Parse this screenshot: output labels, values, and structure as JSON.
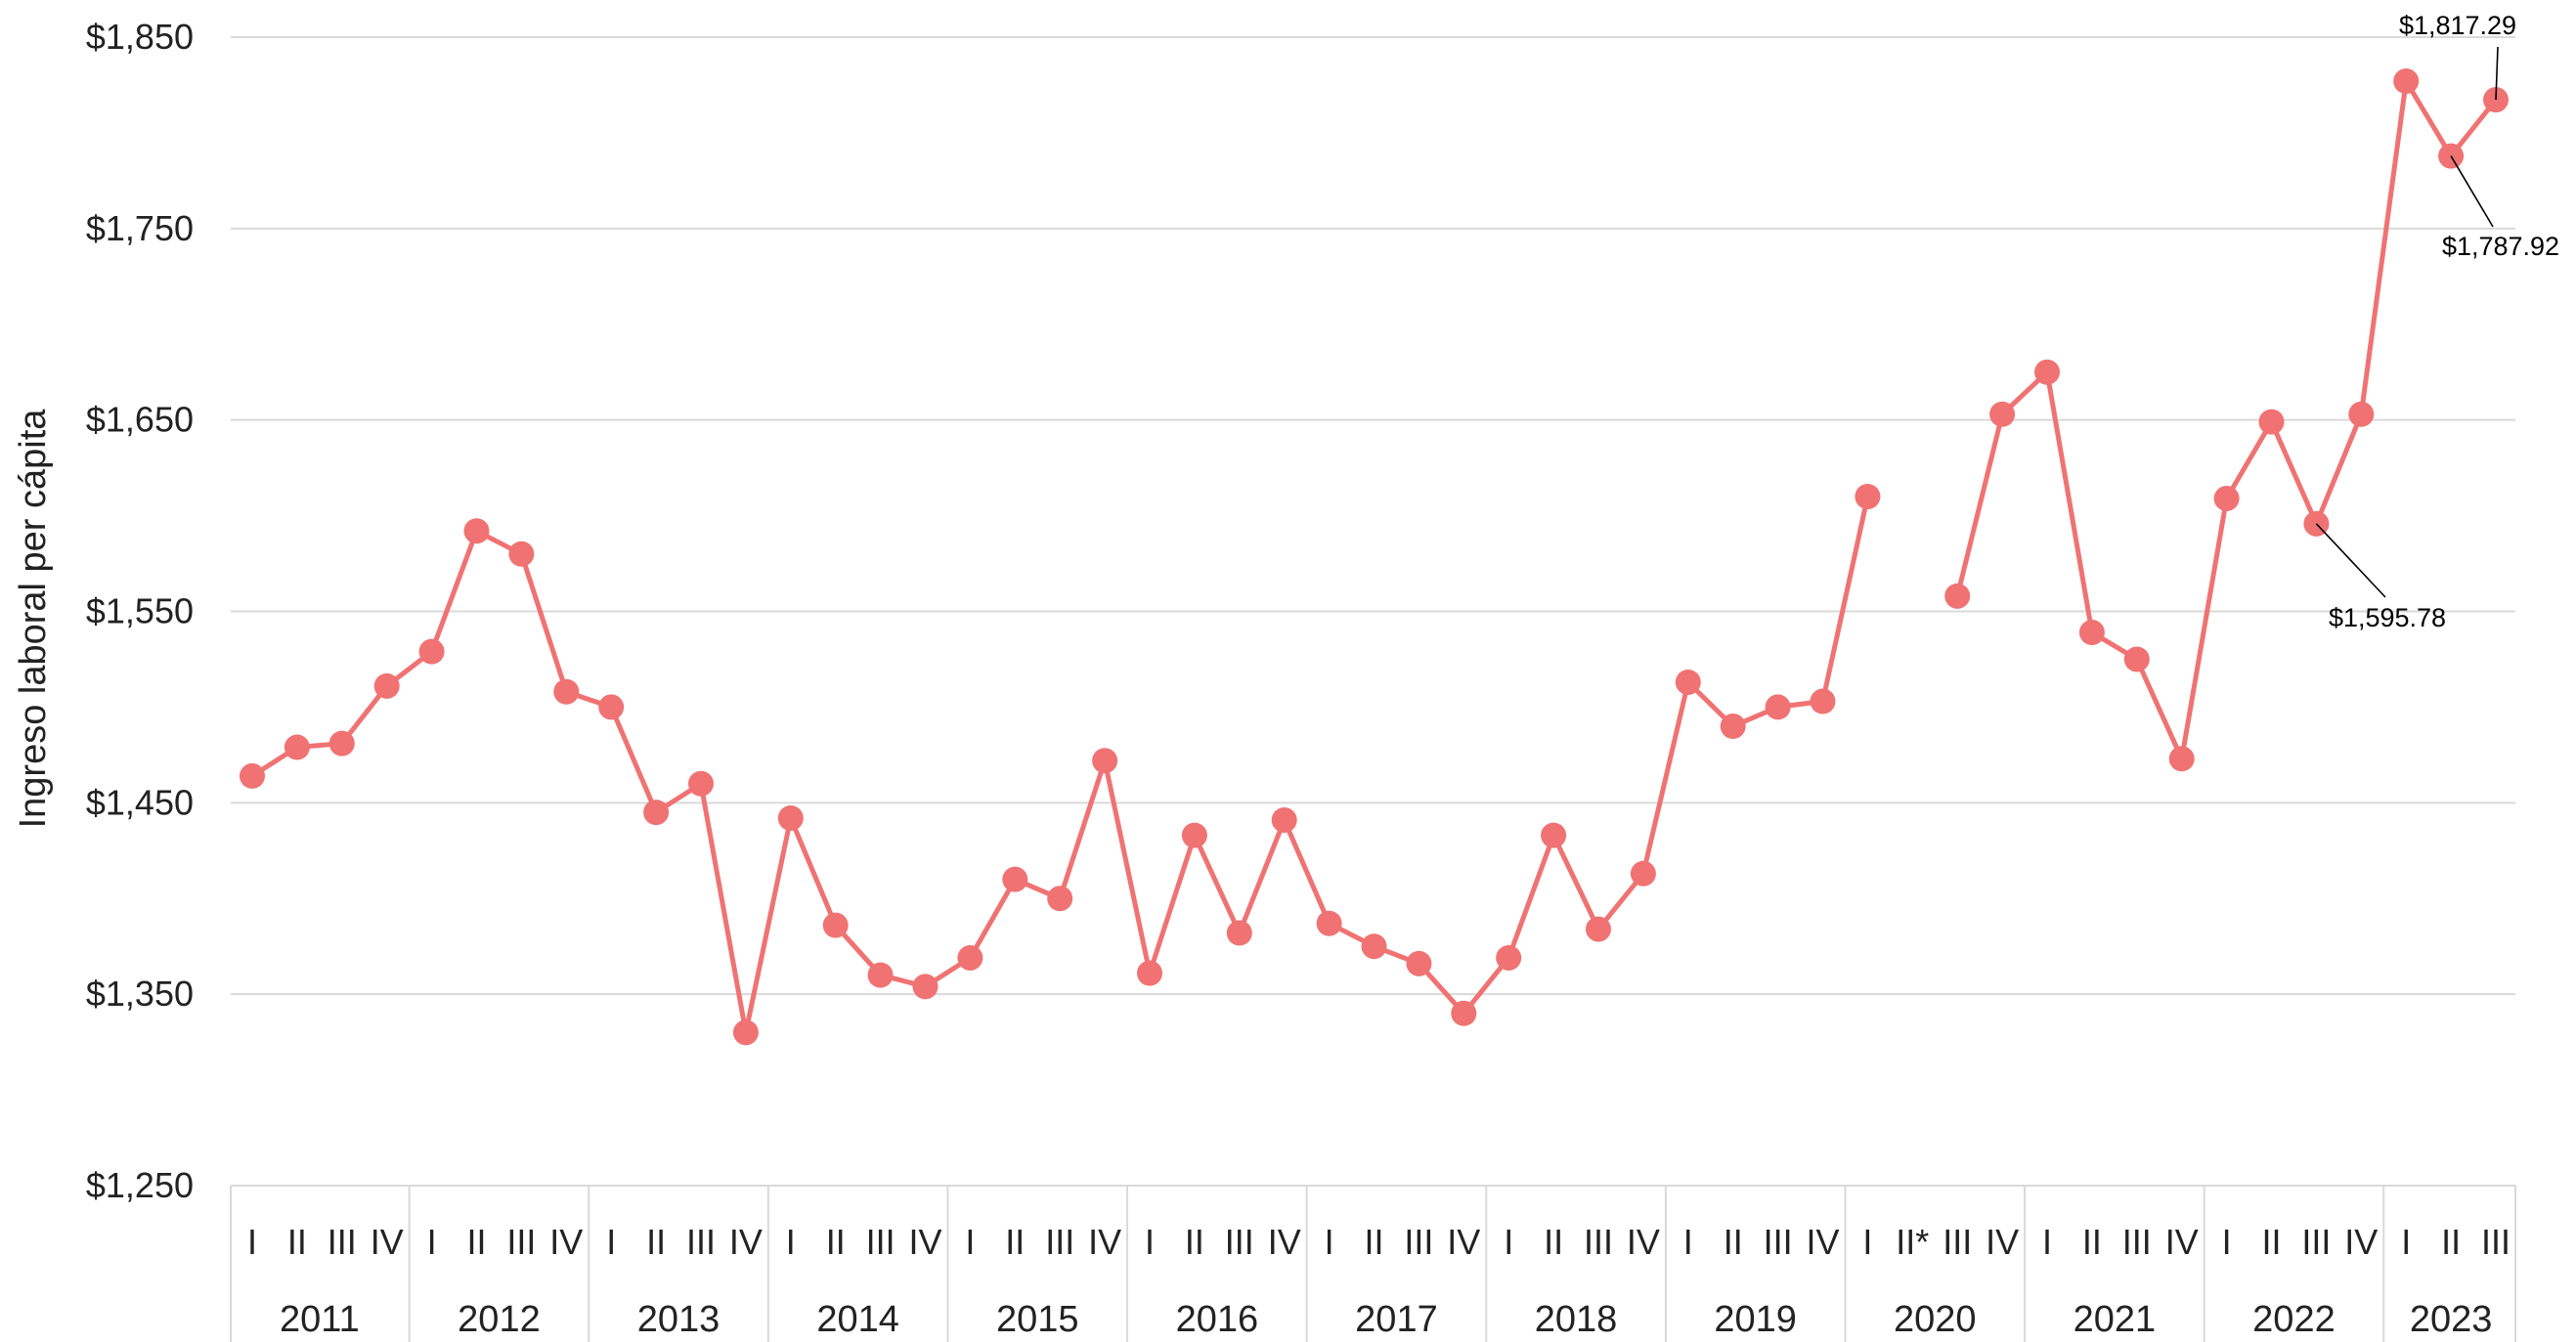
{
  "chart_data": {
    "type": "line",
    "ylabel": "Ingreso laboral per cápita",
    "xlabel": "",
    "title": "",
    "ylim": [
      1250,
      1850
    ],
    "yticks": [
      1250,
      1350,
      1450,
      1550,
      1650,
      1750,
      1850
    ],
    "ytick_labels": [
      "$1,250",
      "$1,350",
      "$1,450",
      "$1,550",
      "$1,650",
      "$1,750",
      "$1,850"
    ],
    "grid": true,
    "legend": "none",
    "years": [
      {
        "year": "2011",
        "quarters": [
          "I",
          "II",
          "III",
          "IV"
        ]
      },
      {
        "year": "2012",
        "quarters": [
          "I",
          "II",
          "III",
          "IV"
        ]
      },
      {
        "year": "2013",
        "quarters": [
          "I",
          "II",
          "III",
          "IV"
        ]
      },
      {
        "year": "2014",
        "quarters": [
          "I",
          "II",
          "III",
          "IV"
        ]
      },
      {
        "year": "2015",
        "quarters": [
          "I",
          "II",
          "III",
          "IV"
        ]
      },
      {
        "year": "2016",
        "quarters": [
          "I",
          "II",
          "III",
          "IV"
        ]
      },
      {
        "year": "2017",
        "quarters": [
          "I",
          "II",
          "III",
          "IV"
        ]
      },
      {
        "year": "2018",
        "quarters": [
          "I",
          "II",
          "III",
          "IV"
        ]
      },
      {
        "year": "2019",
        "quarters": [
          "I",
          "II",
          "III",
          "IV"
        ]
      },
      {
        "year": "2020",
        "quarters": [
          "I",
          "II*",
          "III",
          "IV"
        ]
      },
      {
        "year": "2021",
        "quarters": [
          "I",
          "II",
          "III",
          "IV"
        ]
      },
      {
        "year": "2022",
        "quarters": [
          "I",
          "II",
          "III",
          "IV"
        ]
      },
      {
        "year": "2023",
        "quarters": [
          "I",
          "II",
          "III"
        ]
      }
    ],
    "series": [
      {
        "color": "#f07272",
        "values": [
          1464,
          1479,
          1481,
          1511,
          1529,
          1592,
          1580,
          1508,
          1500,
          1445,
          1460,
          1330,
          1442,
          1386,
          1360,
          1354,
          1369,
          1410,
          1400,
          1472,
          1361,
          1433,
          1382,
          1441,
          1387,
          1375,
          1366,
          1340,
          1369,
          1433,
          1384,
          1413,
          1513,
          1490,
          1500,
          1503,
          1610,
          null,
          1558,
          1653,
          1675,
          1539,
          1525,
          1473,
          1609,
          1649,
          1595.78,
          1653,
          1827,
          1787.92,
          1817.29
        ]
      }
    ],
    "annotations": [
      {
        "label": "$1,817.29",
        "index": 50
      },
      {
        "label": "$1,787.92",
        "index": 49
      },
      {
        "label": "$1,595.78",
        "index": 46
      }
    ]
  }
}
